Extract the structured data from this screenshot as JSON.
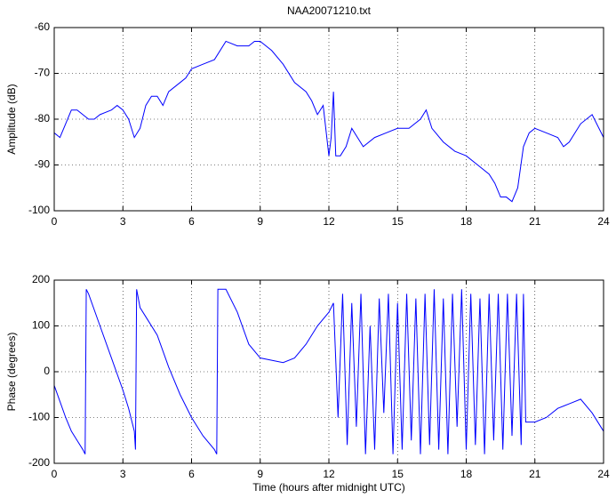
{
  "chart_data": [
    {
      "type": "line",
      "title": "NAA20071210.txt",
      "y_label": "Amplitude (dB)",
      "xlim": [
        0,
        24
      ],
      "xticks": [
        0,
        3,
        6,
        9,
        12,
        15,
        18,
        21,
        24
      ],
      "ylim": [
        -100,
        -60
      ],
      "yticks": [
        -100,
        -90,
        -80,
        -70,
        -60
      ],
      "grid": true,
      "series": [
        {
          "color": "#0000ff",
          "x": [
            0,
            0.25,
            0.5,
            0.75,
            1,
            1.25,
            1.5,
            1.75,
            2,
            2.5,
            2.75,
            3,
            3.25,
            3.5,
            3.75,
            4,
            4.25,
            4.5,
            4.75,
            5,
            5.5,
            5.75,
            6,
            6.5,
            7,
            7.5,
            8,
            8.5,
            8.75,
            9,
            9.5,
            10,
            10.5,
            11,
            11.25,
            11.5,
            11.75,
            12,
            12.1,
            12.2,
            12.3,
            12.5,
            12.75,
            13,
            13.25,
            13.5,
            14,
            14.5,
            15,
            15.5,
            16,
            16.25,
            16.5,
            17,
            17.5,
            18,
            18.5,
            19,
            19.25,
            19.5,
            19.75,
            20,
            20.25,
            20.5,
            20.75,
            21,
            21.5,
            22,
            22.25,
            22.5,
            23,
            23.5,
            24
          ],
          "values": [
            -83,
            -84,
            -81,
            -78,
            -78,
            -79,
            -80,
            -80,
            -79,
            -78,
            -77,
            -78,
            -80,
            -84,
            -82,
            -77,
            -75,
            -75,
            -77,
            -74,
            -72,
            -71,
            -69,
            -68,
            -67,
            -63,
            -64,
            -64,
            -63,
            -63,
            -65,
            -68,
            -72,
            -74,
            -76,
            -79,
            -77,
            -88,
            -84,
            -74,
            -88,
            -88,
            -86,
            -82,
            -84,
            -86,
            -84,
            -83,
            -82,
            -82,
            -80,
            -78,
            -82,
            -85,
            -87,
            -88,
            -90,
            -92,
            -94,
            -97,
            -97,
            -98,
            -95,
            -86,
            -83,
            -82,
            -83,
            -84,
            -86,
            -85,
            -81,
            -79,
            -84
          ]
        }
      ]
    },
    {
      "type": "line",
      "y_label": "Phase (degrees)",
      "x_label": "Time (hours after midnight UTC)",
      "xlim": [
        0,
        24
      ],
      "xticks": [
        0,
        3,
        6,
        9,
        12,
        15,
        18,
        21,
        24
      ],
      "ylim": [
        -200,
        200
      ],
      "yticks": [
        -200,
        -100,
        0,
        100,
        200
      ],
      "grid": true,
      "series": [
        {
          "color": "#0000ff",
          "x": [
            0,
            0.25,
            0.5,
            0.75,
            1,
            1.25,
            1.35,
            1.4,
            1.5,
            2,
            2.5,
            3,
            3.25,
            3.5,
            3.55,
            3.6,
            3.75,
            4,
            4.5,
            5,
            5.5,
            6,
            6.5,
            7,
            7.1,
            7.15,
            7.5,
            8,
            8.5,
            9,
            9.5,
            10,
            10.5,
            11,
            11.5,
            12,
            12.2,
            12.4,
            12.6,
            12.8,
            13.0,
            13.2,
            13.4,
            13.6,
            13.8,
            14.0,
            14.2,
            14.4,
            14.6,
            14.8,
            15.0,
            15.2,
            15.4,
            15.6,
            15.8,
            16.0,
            16.2,
            16.4,
            16.6,
            16.8,
            17.0,
            17.2,
            17.4,
            17.6,
            17.8,
            18.0,
            18.2,
            18.4,
            18.6,
            18.8,
            19.0,
            19.2,
            19.4,
            19.6,
            19.8,
            20.0,
            20.2,
            20.4,
            20.5,
            20.6,
            21,
            21.5,
            22,
            22.5,
            23,
            23.5,
            24
          ],
          "values": [
            -30,
            -65,
            -100,
            -130,
            -150,
            -170,
            -180,
            180,
            170,
            100,
            30,
            -40,
            -80,
            -130,
            -170,
            180,
            140,
            120,
            80,
            10,
            -50,
            -100,
            -140,
            -170,
            -180,
            180,
            180,
            130,
            60,
            30,
            25,
            20,
            30,
            60,
            100,
            130,
            150,
            -100,
            170,
            -160,
            150,
            -120,
            170,
            -180,
            100,
            -170,
            160,
            -90,
            170,
            -180,
            150,
            -170,
            170,
            -150,
            160,
            -180,
            170,
            -160,
            180,
            -170,
            160,
            -180,
            170,
            -120,
            180,
            -170,
            170,
            -160,
            160,
            -180,
            170,
            -150,
            170,
            -170,
            170,
            -140,
            170,
            -160,
            170,
            -110,
            -110,
            -100,
            -80,
            -70,
            -60,
            -90,
            -130
          ]
        }
      ]
    }
  ]
}
